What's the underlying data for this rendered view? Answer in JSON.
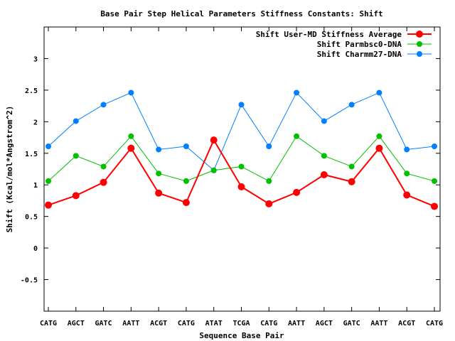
{
  "chart_data": {
    "type": "line",
    "title": "Base Pair Step Helical Parameters Stiffness Constants: Shift",
    "xlabel": "Sequence Base Pair",
    "ylabel": "Shift (Kcal/mol*Angstrom^2)",
    "categories": [
      "CATG",
      "AGCT",
      "GATC",
      "AATT",
      "ACGT",
      "CATG",
      "ATAT",
      "TCGA",
      "CATG",
      "AATT",
      "AGCT",
      "GATC",
      "AATT",
      "ACGT",
      "CATG"
    ],
    "ylim": [
      -1,
      3.5
    ],
    "yticks": [
      -0.5,
      0,
      0.5,
      1,
      1.5,
      2,
      2.5,
      3
    ],
    "ytick_labels": [
      "-0.5",
      "0",
      "0.5",
      "1",
      "1.5",
      "2",
      "2.5",
      "3"
    ],
    "grid": false,
    "legend_position": "top-right",
    "series": [
      {
        "name": "Shift User-MD Stiffness Average",
        "color": "#ff0000",
        "values": [
          0.68,
          0.83,
          1.04,
          1.58,
          0.87,
          0.72,
          1.71,
          0.97,
          0.7,
          0.88,
          1.16,
          1.05,
          1.58,
          0.84,
          0.66
        ]
      },
      {
        "name": "Shift Parmbsc0-DNA",
        "color": "#00c000",
        "values": [
          1.06,
          1.46,
          1.29,
          1.77,
          1.18,
          1.06,
          1.23,
          1.29,
          1.06,
          1.77,
          1.46,
          1.29,
          1.77,
          1.18,
          1.06
        ]
      },
      {
        "name": "Shift Charmm27-DNA",
        "color": "#0080ff",
        "values": [
          1.61,
          2.01,
          2.27,
          2.46,
          1.56,
          1.61,
          1.23,
          2.27,
          1.61,
          2.46,
          2.01,
          2.27,
          2.46,
          1.56,
          1.61
        ]
      }
    ]
  }
}
